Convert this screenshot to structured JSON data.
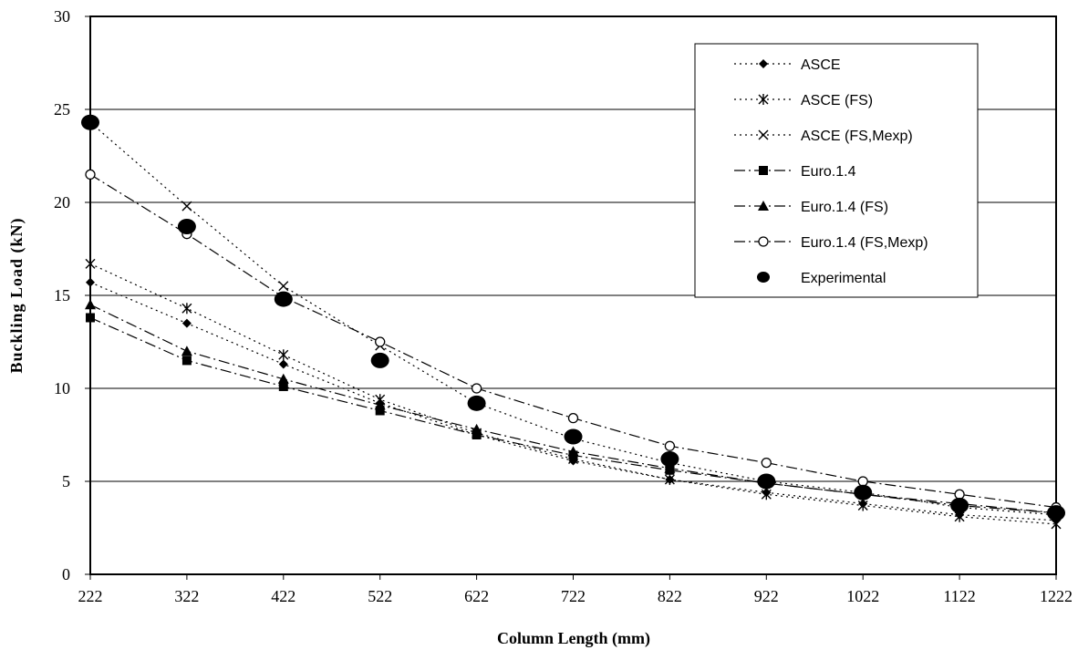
{
  "chart_data": {
    "type": "line",
    "xlabel": "Column Length (mm)",
    "ylabel": "Buckling Load (kN)",
    "x": [
      222,
      322,
      422,
      522,
      622,
      722,
      822,
      922,
      1022,
      1122,
      1222
    ],
    "xlim": [
      222,
      1222
    ],
    "ylim": [
      0,
      30
    ],
    "yticks": [
      0,
      5,
      10,
      15,
      20,
      25,
      30
    ],
    "grid": "horizontal",
    "legend_position": "top-right",
    "series": [
      {
        "name": "ASCE",
        "marker": "diamond",
        "dash": "dotted",
        "values": [
          15.7,
          13.5,
          11.3,
          9.2,
          7.5,
          6.1,
          5.1,
          4.4,
          3.8,
          3.2,
          2.9
        ]
      },
      {
        "name": "ASCE (FS)",
        "marker": "asterisk",
        "dash": "dotted",
        "values": [
          16.7,
          14.3,
          11.8,
          9.4,
          7.6,
          6.2,
          5.1,
          4.3,
          3.7,
          3.1,
          2.7
        ]
      },
      {
        "name": "ASCE (FS,Mexp)",
        "marker": "x",
        "dash": "dotted",
        "values": [
          24.3,
          19.8,
          15.5,
          12.3,
          9.2,
          7.3,
          6.0,
          5.0,
          4.4,
          3.6,
          3.2
        ]
      },
      {
        "name": "Euro.1.4",
        "marker": "square",
        "dash": "dashdot",
        "values": [
          13.8,
          11.5,
          10.1,
          8.8,
          7.5,
          6.4,
          5.6,
          4.9,
          4.3,
          3.7,
          3.3
        ]
      },
      {
        "name": "Euro.1.4 (FS)",
        "marker": "triangle",
        "dash": "dashdot",
        "values": [
          14.5,
          12.0,
          10.5,
          9.1,
          7.8,
          6.6,
          5.7,
          4.9,
          4.3,
          3.8,
          3.3
        ]
      },
      {
        "name": "Euro.1.4 (FS,Mexp)",
        "marker": "circle-open",
        "dash": "dashdot",
        "values": [
          21.5,
          18.3,
          14.9,
          12.5,
          10.0,
          8.4,
          6.9,
          6.0,
          5.0,
          4.3,
          3.6
        ]
      },
      {
        "name": "Experimental",
        "marker": "circle-filled",
        "dash": "none",
        "values": [
          24.3,
          18.7,
          14.8,
          11.5,
          9.2,
          7.4,
          6.2,
          5.0,
          4.4,
          3.7,
          3.3
        ]
      }
    ]
  }
}
